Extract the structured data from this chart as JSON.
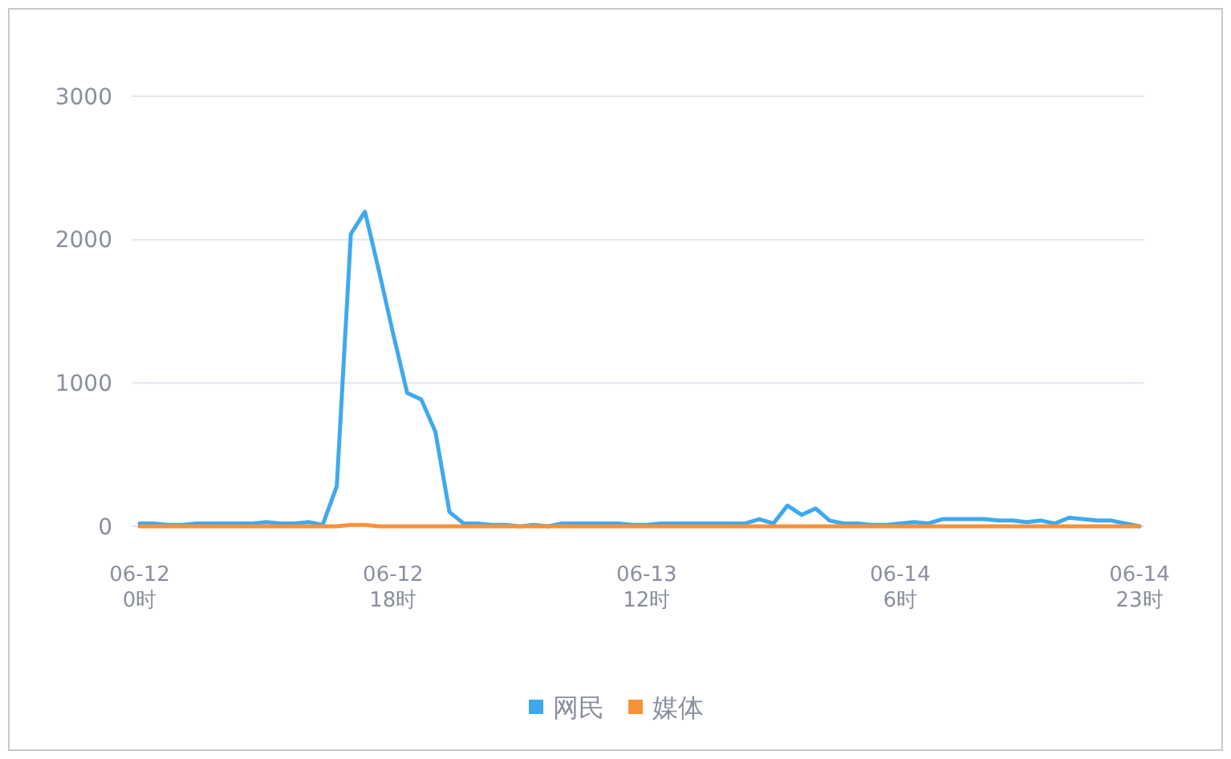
{
  "chart_data": {
    "type": "line",
    "categories": [
      "06-12\n0时",
      null,
      null,
      null,
      null,
      null,
      null,
      null,
      null,
      null,
      null,
      null,
      null,
      null,
      null,
      null,
      null,
      null,
      "06-12\n18时",
      null,
      null,
      null,
      null,
      null,
      null,
      null,
      null,
      null,
      null,
      null,
      null,
      null,
      null,
      null,
      null,
      null,
      "06-13\n12时",
      null,
      null,
      null,
      null,
      null,
      null,
      null,
      null,
      null,
      null,
      null,
      null,
      null,
      null,
      null,
      null,
      null,
      "06-14\n6时",
      null,
      null,
      null,
      null,
      null,
      null,
      null,
      null,
      null,
      null,
      null,
      null,
      null,
      null,
      null,
      null,
      "06-14\n23时"
    ],
    "series": [
      {
        "name": "网民",
        "color": "#3fa9ee",
        "values": [
          20,
          20,
          10,
          10,
          20,
          20,
          20,
          20,
          20,
          30,
          20,
          20,
          30,
          10,
          280,
          2040,
          2195,
          1780,
          1345,
          930,
          885,
          660,
          100,
          20,
          20,
          10,
          10,
          0,
          10,
          0,
          20,
          20,
          20,
          20,
          20,
          10,
          10,
          20,
          20,
          20,
          20,
          20,
          20,
          20,
          50,
          20,
          145,
          80,
          125,
          40,
          20,
          20,
          10,
          10,
          20,
          30,
          20,
          50,
          50,
          50,
          50,
          40,
          40,
          30,
          40,
          20,
          60,
          50,
          40,
          40,
          20,
          0
        ]
      },
      {
        "name": "媒体",
        "color": "#f7923a",
        "values": [
          0,
          0,
          0,
          0,
          0,
          0,
          0,
          0,
          0,
          0,
          0,
          0,
          0,
          0,
          0,
          10,
          10,
          0,
          0,
          0,
          0,
          0,
          0,
          0,
          0,
          0,
          0,
          0,
          0,
          0,
          0,
          0,
          0,
          0,
          0,
          0,
          0,
          0,
          0,
          0,
          0,
          0,
          0,
          0,
          0,
          0,
          0,
          0,
          0,
          0,
          0,
          0,
          0,
          0,
          0,
          0,
          0,
          0,
          0,
          0,
          0,
          0,
          0,
          0,
          0,
          0,
          0,
          0,
          0,
          0,
          0,
          0
        ]
      }
    ],
    "ylim": [
      0,
      3000
    ],
    "yticks": [
      0,
      1000,
      2000,
      3000
    ],
    "grid": "y",
    "legend": "bottom",
    "marker": "none",
    "line_style": "solid"
  }
}
